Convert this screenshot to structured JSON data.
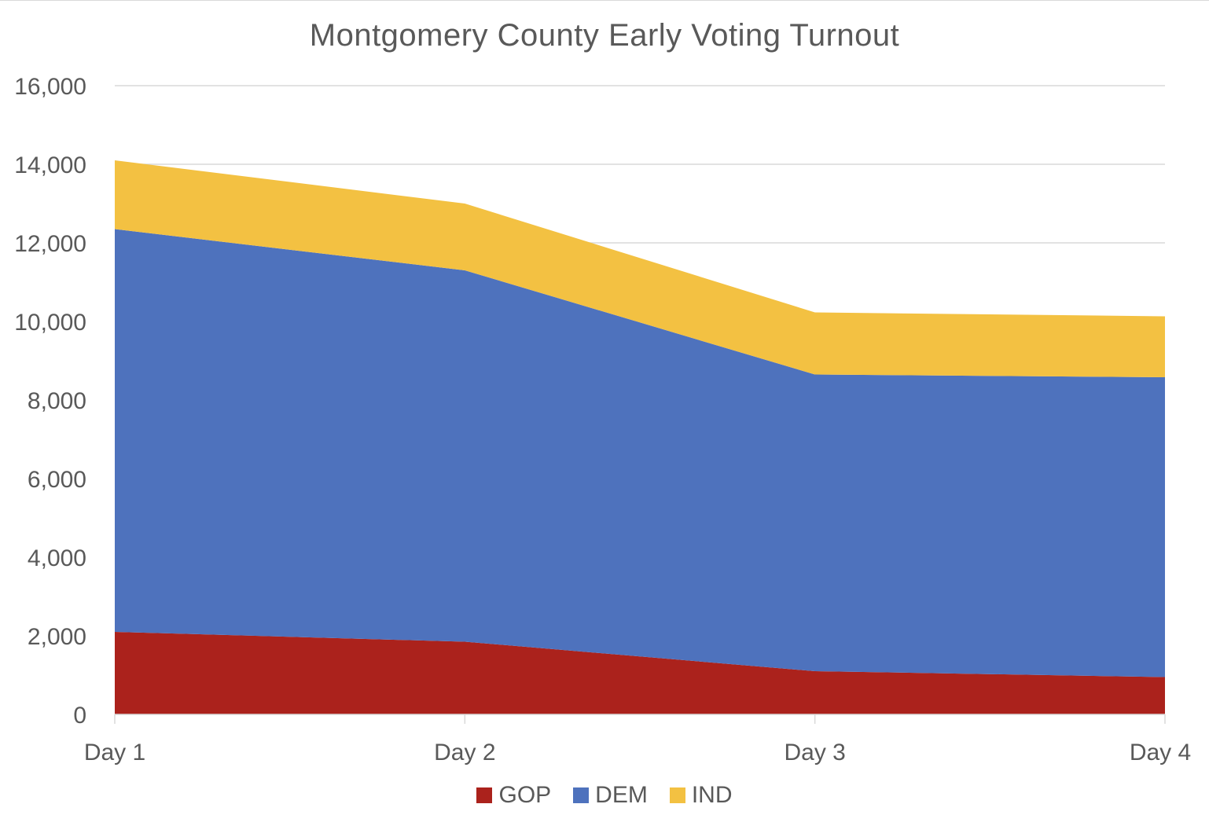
{
  "chart_data": {
    "type": "area",
    "stacked": true,
    "title": "Montgomery County Early Voting Turnout",
    "xlabel": "",
    "ylabel": "",
    "categories": [
      "Day 1",
      "Day 2",
      "Day 3",
      "Day 4"
    ],
    "series": [
      {
        "name": "GOP",
        "color": "#ab221c",
        "values": [
          2100,
          1850,
          1100,
          950
        ]
      },
      {
        "name": "DEM",
        "color": "#4e72bd",
        "values": [
          10250,
          9450,
          7550,
          7630
        ]
      },
      {
        "name": "IND",
        "color": "#f3c142",
        "values": [
          1750,
          1700,
          1580,
          1550
        ]
      }
    ],
    "ylim": [
      0,
      16000
    ],
    "y_ticks": [
      "0",
      "2,000",
      "4,000",
      "6,000",
      "8,000",
      "10,000",
      "12,000",
      "14,000",
      "16,000"
    ],
    "grid": true,
    "legend_position": "bottom",
    "gridline_color": "#d9d9d9",
    "text_color": "#595959"
  }
}
